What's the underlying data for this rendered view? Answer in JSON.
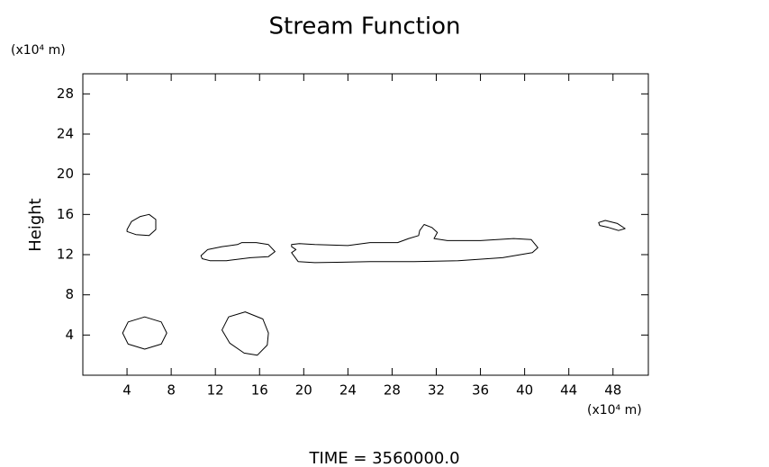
{
  "chart_data": {
    "type": "contour",
    "title": "Stream Function",
    "ylabel": "Height",
    "yunit": "(x10⁴ m)",
    "xunit": "(x10⁴ m)",
    "footer": "TIME = 3560000.0",
    "xlim": [
      0,
      51.2
    ],
    "ylim": [
      0,
      30
    ],
    "xticks": [
      4,
      8,
      12,
      16,
      20,
      24,
      28,
      32,
      36,
      40,
      44,
      48
    ],
    "yticks": [
      4,
      8,
      12,
      16,
      20,
      24,
      28
    ],
    "color": "#000000",
    "contours": [
      {
        "x": [
          4.0,
          4.4,
          5.2,
          6.0,
          6.6,
          6.6,
          6.0,
          4.8,
          4.0
        ],
        "y": [
          14.5,
          15.3,
          15.8,
          16.0,
          15.5,
          14.5,
          13.9,
          14.0,
          14.3
        ]
      },
      {
        "x": [
          7.6,
          7.1,
          5.6,
          4.1,
          3.6,
          4.1,
          5.6,
          7.1
        ],
        "y": [
          4.2,
          5.3,
          5.8,
          5.3,
          4.2,
          3.1,
          2.6,
          3.1
        ]
      },
      {
        "x": [
          16.8,
          16.3,
          14.7,
          13.2,
          12.6,
          13.3,
          14.6,
          15.8,
          16.7
        ],
        "y": [
          4.2,
          5.6,
          6.3,
          5.8,
          4.5,
          3.2,
          2.2,
          2.0,
          3.0
        ]
      },
      {
        "x": [
          10.7,
          11.3,
          12.6,
          14.0,
          14.4,
          15.7,
          16.8,
          17.4,
          16.8,
          15.2,
          13.0,
          11.5,
          10.8
        ],
        "y": [
          11.9,
          12.5,
          12.8,
          13.0,
          13.2,
          13.2,
          13.0,
          12.3,
          11.8,
          11.7,
          11.4,
          11.4,
          11.6
        ]
      },
      {
        "x": [
          18.9,
          19.6,
          21.0,
          24.0,
          26.0,
          28.5,
          29.5,
          30.4,
          30.5,
          30.9,
          31.6,
          32.1,
          31.8,
          33.0,
          36.0,
          39.0,
          40.6,
          41.2,
          40.7,
          38.0,
          34.0,
          30.0,
          26.0,
          21.0,
          19.5,
          18.9,
          19.3,
          18.9
        ],
        "y": [
          13.0,
          13.1,
          13.0,
          12.9,
          13.2,
          13.2,
          13.6,
          13.9,
          14.4,
          15.0,
          14.7,
          14.2,
          13.6,
          13.4,
          13.4,
          13.6,
          13.5,
          12.7,
          12.2,
          11.7,
          11.4,
          11.3,
          11.3,
          11.2,
          11.3,
          12.2,
          12.5,
          12.8
        ]
      },
      {
        "x": [
          46.7,
          47.3,
          48.4,
          49.1,
          48.5,
          47.6,
          46.8
        ],
        "y": [
          15.2,
          15.4,
          15.1,
          14.6,
          14.4,
          14.7,
          14.9
        ]
      }
    ]
  }
}
